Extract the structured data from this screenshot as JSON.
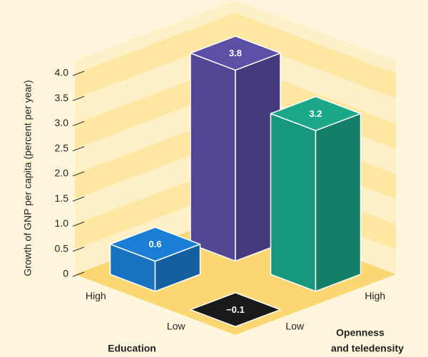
{
  "chart_data": {
    "type": "bar3d",
    "y_label": "Growth of GNP per capita (percent per year)",
    "x_label": "Education",
    "z_label_lines": [
      "Openness",
      "and teledensity"
    ],
    "categories": [
      "High",
      "Low"
    ],
    "series": [
      {
        "name": "Low",
        "colors": [
          "#1a7fd4",
          "#1a1a1a"
        ],
        "values": [
          0.6,
          -0.1
        ],
        "value_labels": [
          "0.6",
          "−0.1"
        ]
      },
      {
        "name": "High",
        "colors": [
          "#5b4fa6",
          "#1aa889"
        ],
        "values": [
          3.8,
          3.2
        ],
        "value_labels": [
          "3.8",
          "3.2"
        ]
      }
    ],
    "ylim": [
      0,
      4.25
    ],
    "yticks": [
      0,
      0.5,
      {
        "value": 1,
        "label": "1.0"
      },
      1.5,
      {
        "value": 2,
        "label": "2.0"
      },
      2.5,
      {
        "value": 3,
        "label": "3.0"
      },
      3.5,
      {
        "value": 4,
        "label": "4.0"
      }
    ]
  }
}
